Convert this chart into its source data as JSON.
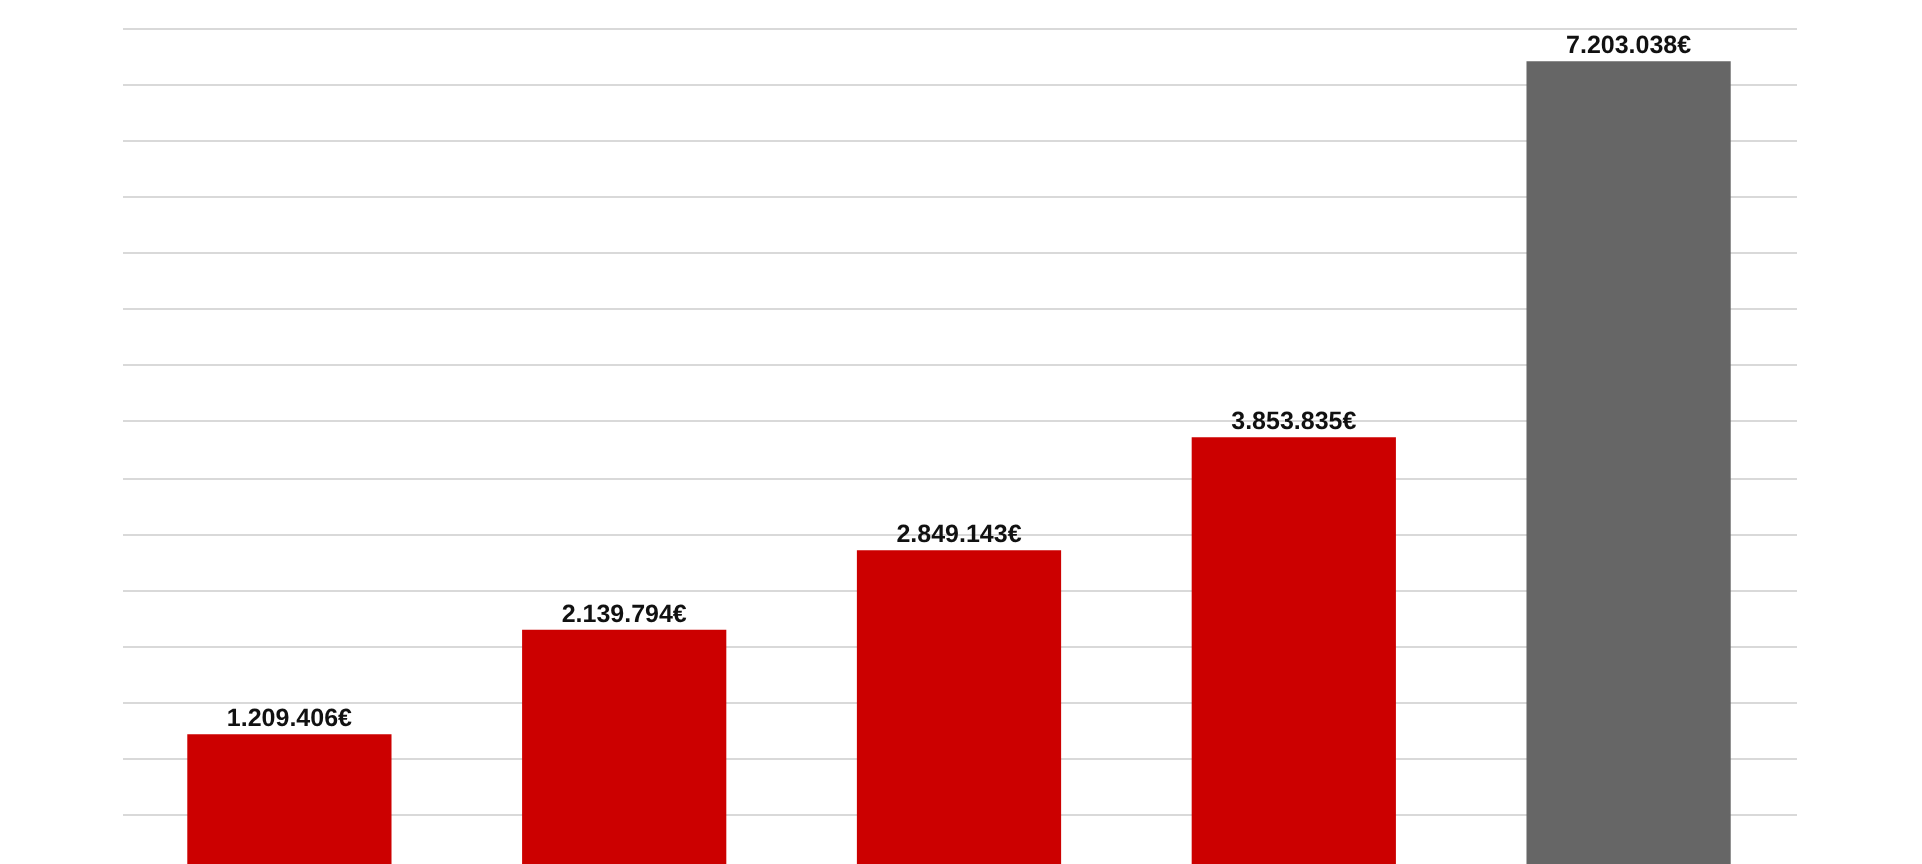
{
  "chart_data": {
    "type": "bar",
    "categories": [
      null,
      null,
      null,
      null,
      null
    ],
    "values": [
      1209406,
      2139794,
      2849143,
      3853835,
      7203038
    ],
    "value_labels": [
      "1.209.406€",
      "2.139.794€",
      "2.849.143€",
      "3.853.835€",
      "7.203.038€"
    ],
    "colors": [
      "#cc0000",
      "#cc0000",
      "#cc0000",
      "#cc0000",
      "#666666"
    ],
    "grid": "y"
  }
}
